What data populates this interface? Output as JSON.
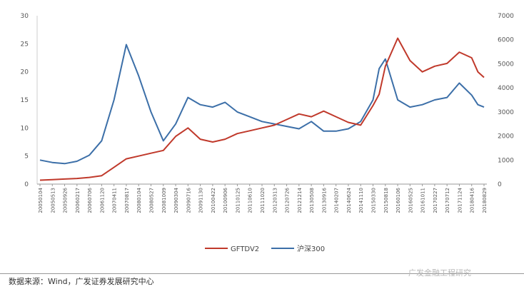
{
  "chart_data": {
    "type": "line",
    "ylim_left": [
      0,
      30
    ],
    "ylim_right": [
      0,
      7000
    ],
    "yticks_left": [
      "0",
      "5",
      "10",
      "15",
      "20",
      "25",
      "30"
    ],
    "yticks_right": [
      "0",
      "1000",
      "2000",
      "3000",
      "4000",
      "5000",
      "6000",
      "7000"
    ],
    "x_tick_labels": [
      "20050104",
      "20050513",
      "20050926",
      "20060217",
      "20060706",
      "20061120",
      "20070411",
      "20070817",
      "20080104",
      "20080527",
      "20081009",
      "20090304",
      "20090716",
      "20091130",
      "20100422",
      "20100906",
      "20110125",
      "20110610",
      "20111020",
      "20120313",
      "20120726",
      "20121214",
      "20130508",
      "20130916",
      "20140207",
      "20140624",
      "20141110",
      "20150330",
      "20150818",
      "20160106",
      "20160525",
      "20161011",
      "20170227",
      "20170712",
      "20171124",
      "20180416",
      "20180829"
    ],
    "grid": false,
    "legend_position": "bottom",
    "series": [
      {
        "name": "GFTDV2",
        "axis": "left",
        "color": "#c0392b",
        "x": [
          0,
          1,
          2,
          3,
          4,
          5,
          6,
          7,
          8,
          9,
          10,
          11,
          12,
          13,
          14,
          15,
          16,
          17,
          18,
          19,
          20,
          21,
          22,
          23,
          24,
          25,
          26,
          27,
          27.5,
          28,
          29,
          30,
          31,
          32,
          33,
          34,
          35,
          35.5,
          36
        ],
        "y": [
          0.7,
          0.8,
          0.9,
          1.0,
          1.2,
          1.5,
          3.0,
          4.5,
          5.0,
          5.5,
          6.0,
          8.5,
          10.0,
          8.0,
          7.5,
          8.0,
          9.0,
          9.5,
          10.0,
          10.5,
          11.5,
          12.5,
          12.0,
          13.0,
          12.0,
          11.0,
          10.5,
          14.0,
          16.0,
          21.0,
          26.0,
          22.0,
          20.0,
          21.0,
          21.5,
          23.5,
          22.5,
          20.0,
          19.0
        ]
      },
      {
        "name": "沪深300",
        "axis": "right",
        "color": "#3c6fa8",
        "x": [
          0,
          1,
          2,
          3,
          4,
          5,
          6,
          7,
          8,
          9,
          10,
          11,
          12,
          13,
          14,
          15,
          16,
          17,
          18,
          19,
          20,
          21,
          22,
          23,
          24,
          25,
          26,
          27,
          27.5,
          28,
          29,
          30,
          31,
          32,
          33,
          34,
          35,
          35.5,
          36
        ],
        "y": [
          1000,
          900,
          850,
          950,
          1200,
          1800,
          3500,
          5800,
          4500,
          3000,
          1800,
          2500,
          3600,
          3300,
          3200,
          3400,
          3000,
          2800,
          2600,
          2500,
          2400,
          2300,
          2600,
          2200,
          2200,
          2300,
          2600,
          3500,
          4800,
          5200,
          3500,
          3200,
          3300,
          3500,
          3600,
          4200,
          3700,
          3300,
          3200
        ]
      }
    ]
  },
  "legend": {
    "series1_label": "GFTDV2",
    "series2_label": "沪深300"
  },
  "footer": {
    "source": "数据来源：Wind，广发证券发展研究中心",
    "watermark": "广发金融工程研究"
  }
}
